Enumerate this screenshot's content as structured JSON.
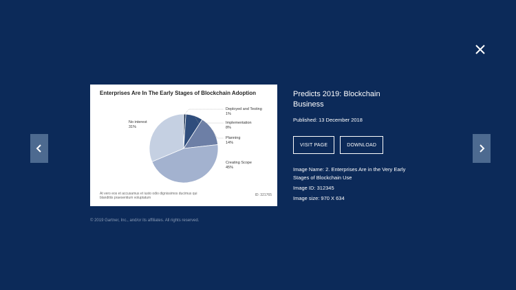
{
  "modal": {
    "close_icon": "close-icon",
    "prev_icon": "chevron-left-icon",
    "next_icon": "chevron-right-icon",
    "background_color": "#0c2a59"
  },
  "card": {
    "title": "Enterprises Are In The Early Stages of Blockchain Adoption",
    "footer_text": "At vero eos et accusamus et iusto odio dignissimos ducimus qui blanditiis praesentium voluptatum",
    "id_text": "ID: 321765",
    "chart_data": {
      "type": "pie",
      "title": "Enterprises Are In The Early Stages of Blockchain Adoption",
      "slices": [
        {
          "label": "Deployed and Testing",
          "value": 1,
          "display": "1%",
          "color": "#1f3556"
        },
        {
          "label": "Implementation",
          "value": 8,
          "display": "8%",
          "color": "#2f4d7c"
        },
        {
          "label": "Planning",
          "value": 14,
          "display": "14%",
          "color": "#6d7fa6"
        },
        {
          "label": "Creating Scope",
          "value": 45,
          "display": "45%",
          "color": "#a3b2cf"
        },
        {
          "label": "No interest",
          "value": 31,
          "display": "31%",
          "color": "#c5d0e2"
        }
      ]
    }
  },
  "copyright": "© 2019 Gartner, Inc., and/or its affiliates. All rights reserved.",
  "info": {
    "title": "Predicts 2019: Blockchain Business",
    "published": "Published: 13 December 2018",
    "visit_label": "VISIT PAGE",
    "download_label": "DOWNLOAD",
    "image_name": "Image Name: 2. Enterprises Are in the Very Early Stages of Blockchain Use",
    "image_id": "Image ID: 312345",
    "image_size": "Image size: 970 X 634"
  }
}
